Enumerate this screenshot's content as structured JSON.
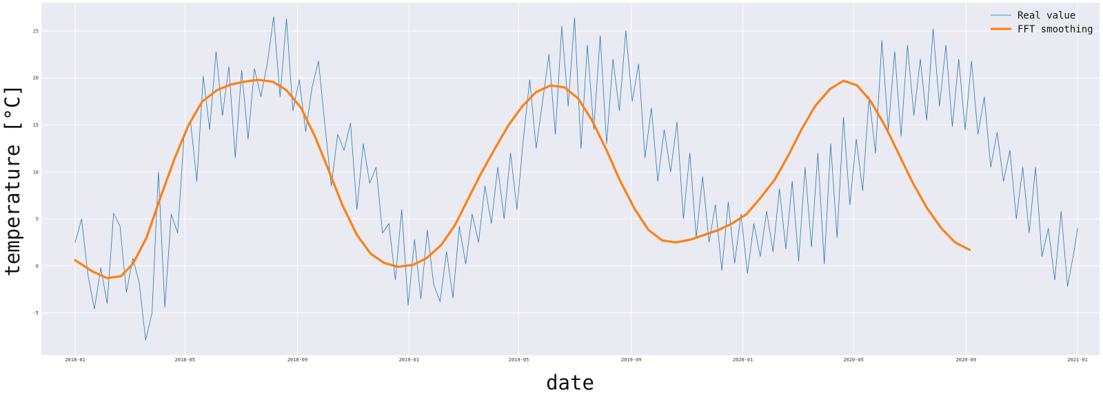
{
  "chart_data": {
    "type": "line",
    "title": "",
    "xlabel": "date",
    "ylabel": "temperature [°C]",
    "xlim": [
      "2017-11-25",
      "2021-01-25"
    ],
    "ylim": [
      -9.5,
      28.0
    ],
    "grid": true,
    "legend_position": "top-right",
    "x_ticks": [
      "2018-01",
      "2018-05",
      "2018-09",
      "2019-01",
      "2019-05",
      "2019-09",
      "2020-01",
      "2020-05",
      "2020-09",
      "2021-01"
    ],
    "y_ticks": [
      -5,
      0,
      5,
      10,
      15,
      20,
      25
    ],
    "colors": {
      "real": "#1f77b4",
      "smooth": "#ff7f0e",
      "plot_bg": "#eaeaf2",
      "grid": "#ffffff"
    },
    "series": [
      {
        "name": "Real value",
        "style": "thin",
        "points": [
          [
            "2018-01-01",
            2.5
          ],
          [
            "2018-01-08",
            5.0
          ],
          [
            "2018-01-15",
            -1.0
          ],
          [
            "2018-01-22",
            -4.6
          ],
          [
            "2018-01-29",
            -0.2
          ],
          [
            "2018-02-05",
            -4.0
          ],
          [
            "2018-02-12",
            5.6
          ],
          [
            "2018-02-19",
            4.2
          ],
          [
            "2018-02-26",
            -2.8
          ],
          [
            "2018-03-05",
            0.8
          ],
          [
            "2018-03-12",
            -1.8
          ],
          [
            "2018-03-19",
            -7.9
          ],
          [
            "2018-03-26",
            -5.0
          ],
          [
            "2018-04-02",
            10.0
          ],
          [
            "2018-04-09",
            -4.4
          ],
          [
            "2018-04-16",
            5.5
          ],
          [
            "2018-04-23",
            3.5
          ],
          [
            "2018-04-30",
            13.8
          ],
          [
            "2018-05-07",
            15.5
          ],
          [
            "2018-05-14",
            9.0
          ],
          [
            "2018-05-21",
            20.2
          ],
          [
            "2018-05-28",
            14.5
          ],
          [
            "2018-06-04",
            22.8
          ],
          [
            "2018-06-11",
            16.0
          ],
          [
            "2018-06-18",
            21.2
          ],
          [
            "2018-06-25",
            11.5
          ],
          [
            "2018-07-02",
            20.8
          ],
          [
            "2018-07-09",
            13.5
          ],
          [
            "2018-07-16",
            21.0
          ],
          [
            "2018-07-23",
            18.0
          ],
          [
            "2018-07-30",
            21.5
          ],
          [
            "2018-08-06",
            26.5
          ],
          [
            "2018-08-13",
            18.0
          ],
          [
            "2018-08-20",
            26.3
          ],
          [
            "2018-08-27",
            16.5
          ],
          [
            "2018-09-03",
            19.8
          ],
          [
            "2018-09-10",
            14.3
          ],
          [
            "2018-09-17",
            19.0
          ],
          [
            "2018-09-24",
            21.8
          ],
          [
            "2018-10-01",
            15.0
          ],
          [
            "2018-10-08",
            8.5
          ],
          [
            "2018-10-15",
            14.0
          ],
          [
            "2018-10-22",
            12.3
          ],
          [
            "2018-10-29",
            15.2
          ],
          [
            "2018-11-05",
            6.0
          ],
          [
            "2018-11-12",
            13.0
          ],
          [
            "2018-11-19",
            8.8
          ],
          [
            "2018-11-26",
            10.5
          ],
          [
            "2018-12-03",
            3.5
          ],
          [
            "2018-12-10",
            4.5
          ],
          [
            "2018-12-17",
            -1.5
          ],
          [
            "2018-12-24",
            6.0
          ],
          [
            "2018-12-31",
            -4.2
          ],
          [
            "2019-01-07",
            2.8
          ],
          [
            "2019-01-14",
            -3.5
          ],
          [
            "2019-01-21",
            3.8
          ],
          [
            "2019-01-28",
            -2.0
          ],
          [
            "2019-02-04",
            -3.8
          ],
          [
            "2019-02-11",
            1.5
          ],
          [
            "2019-02-18",
            -3.4
          ],
          [
            "2019-02-25",
            4.2
          ],
          [
            "2019-03-04",
            0.2
          ],
          [
            "2019-03-11",
            5.5
          ],
          [
            "2019-03-18",
            2.5
          ],
          [
            "2019-03-25",
            8.5
          ],
          [
            "2019-04-01",
            4.5
          ],
          [
            "2019-04-08",
            10.5
          ],
          [
            "2019-04-15",
            5.0
          ],
          [
            "2019-04-22",
            12.0
          ],
          [
            "2019-04-29",
            6.0
          ],
          [
            "2019-05-06",
            13.5
          ],
          [
            "2019-05-13",
            19.8
          ],
          [
            "2019-05-20",
            12.5
          ],
          [
            "2019-05-27",
            17.5
          ],
          [
            "2019-06-03",
            22.5
          ],
          [
            "2019-06-10",
            14.0
          ],
          [
            "2019-06-17",
            25.5
          ],
          [
            "2019-06-24",
            17.0
          ],
          [
            "2019-07-01",
            26.4
          ],
          [
            "2019-07-08",
            12.5
          ],
          [
            "2019-07-15",
            23.5
          ],
          [
            "2019-07-22",
            14.5
          ],
          [
            "2019-07-29",
            24.5
          ],
          [
            "2019-08-05",
            13.0
          ],
          [
            "2019-08-12",
            22.0
          ],
          [
            "2019-08-19",
            16.5
          ],
          [
            "2019-08-26",
            25.0
          ],
          [
            "2019-09-02",
            17.5
          ],
          [
            "2019-09-09",
            21.5
          ],
          [
            "2019-09-16",
            11.5
          ],
          [
            "2019-09-23",
            16.8
          ],
          [
            "2019-09-30",
            9.0
          ],
          [
            "2019-10-07",
            14.5
          ],
          [
            "2019-10-14",
            10.0
          ],
          [
            "2019-10-21",
            15.3
          ],
          [
            "2019-10-28",
            5.0
          ],
          [
            "2019-11-04",
            12.0
          ],
          [
            "2019-11-11",
            3.0
          ],
          [
            "2019-11-18",
            9.5
          ],
          [
            "2019-11-25",
            2.5
          ],
          [
            "2019-12-02",
            6.5
          ],
          [
            "2019-12-09",
            -0.5
          ],
          [
            "2019-12-16",
            6.8
          ],
          [
            "2019-12-23",
            0.3
          ],
          [
            "2019-12-30",
            5.5
          ],
          [
            "2020-01-06",
            -0.8
          ],
          [
            "2020-01-13",
            4.5
          ],
          [
            "2020-01-20",
            1.0
          ],
          [
            "2020-01-27",
            5.8
          ],
          [
            "2020-02-03",
            1.5
          ],
          [
            "2020-02-10",
            8.2
          ],
          [
            "2020-02-17",
            1.8
          ],
          [
            "2020-02-24",
            9.0
          ],
          [
            "2020-03-02",
            0.5
          ],
          [
            "2020-03-09",
            10.5
          ],
          [
            "2020-03-16",
            2.0
          ],
          [
            "2020-03-23",
            12.0
          ],
          [
            "2020-03-30",
            0.2
          ],
          [
            "2020-04-06",
            13.0
          ],
          [
            "2020-04-13",
            3.0
          ],
          [
            "2020-04-20",
            15.8
          ],
          [
            "2020-04-27",
            6.5
          ],
          [
            "2020-05-04",
            13.5
          ],
          [
            "2020-05-11",
            8.0
          ],
          [
            "2020-05-18",
            18.0
          ],
          [
            "2020-05-25",
            12.0
          ],
          [
            "2020-06-01",
            24.0
          ],
          [
            "2020-06-08",
            14.5
          ],
          [
            "2020-06-15",
            22.8
          ],
          [
            "2020-06-22",
            13.8
          ],
          [
            "2020-06-29",
            23.5
          ],
          [
            "2020-07-06",
            16.0
          ],
          [
            "2020-07-13",
            22.0
          ],
          [
            "2020-07-20",
            15.5
          ],
          [
            "2020-07-27",
            25.2
          ],
          [
            "2020-08-03",
            17.0
          ],
          [
            "2020-08-10",
            23.5
          ],
          [
            "2020-08-17",
            14.8
          ],
          [
            "2020-08-24",
            22.0
          ],
          [
            "2020-08-31",
            14.5
          ],
          [
            "2020-09-07",
            21.8
          ],
          [
            "2020-09-14",
            14.0
          ],
          [
            "2020-09-21",
            18.0
          ],
          [
            "2020-09-28",
            10.5
          ],
          [
            "2020-10-05",
            14.2
          ],
          [
            "2020-10-12",
            9.0
          ],
          [
            "2020-10-19",
            12.3
          ],
          [
            "2020-10-26",
            5.0
          ],
          [
            "2020-11-02",
            10.5
          ],
          [
            "2020-11-09",
            3.5
          ],
          [
            "2020-11-16",
            10.5
          ],
          [
            "2020-11-23",
            1.0
          ],
          [
            "2020-11-30",
            4.0
          ],
          [
            "2020-12-07",
            -1.5
          ],
          [
            "2020-12-14",
            5.8
          ],
          [
            "2020-12-21",
            -2.2
          ],
          [
            "2020-12-28",
            1.5
          ],
          [
            "2021-01-01",
            4.0
          ]
        ]
      },
      {
        "name": "FFT smoothing",
        "style": "thick",
        "points": [
          [
            "2018-01-01",
            0.6
          ],
          [
            "2018-01-20",
            -0.6
          ],
          [
            "2018-02-05",
            -1.3
          ],
          [
            "2018-02-20",
            -1.1
          ],
          [
            "2018-03-05",
            0.2
          ],
          [
            "2018-03-20",
            3.0
          ],
          [
            "2018-04-05",
            7.5
          ],
          [
            "2018-04-20",
            11.5
          ],
          [
            "2018-05-05",
            15.0
          ],
          [
            "2018-05-20",
            17.5
          ],
          [
            "2018-06-05",
            18.7
          ],
          [
            "2018-06-20",
            19.3
          ],
          [
            "2018-07-05",
            19.6
          ],
          [
            "2018-07-20",
            19.8
          ],
          [
            "2018-08-05",
            19.6
          ],
          [
            "2018-08-20",
            18.7
          ],
          [
            "2018-09-05",
            16.8
          ],
          [
            "2018-09-20",
            13.8
          ],
          [
            "2018-10-05",
            10.2
          ],
          [
            "2018-10-20",
            6.5
          ],
          [
            "2018-11-05",
            3.3
          ],
          [
            "2018-11-20",
            1.3
          ],
          [
            "2018-12-05",
            0.3
          ],
          [
            "2018-12-20",
            -0.1
          ],
          [
            "2019-01-05",
            0.1
          ],
          [
            "2019-01-20",
            0.8
          ],
          [
            "2019-02-05",
            2.2
          ],
          [
            "2019-02-20",
            4.3
          ],
          [
            "2019-03-05",
            6.8
          ],
          [
            "2019-03-20",
            9.7
          ],
          [
            "2019-04-05",
            12.5
          ],
          [
            "2019-04-20",
            15.0
          ],
          [
            "2019-05-05",
            17.0
          ],
          [
            "2019-05-20",
            18.5
          ],
          [
            "2019-06-05",
            19.2
          ],
          [
            "2019-06-20",
            19.0
          ],
          [
            "2019-07-05",
            17.8
          ],
          [
            "2019-07-20",
            15.5
          ],
          [
            "2019-08-05",
            12.3
          ],
          [
            "2019-08-20",
            9.0
          ],
          [
            "2019-09-05",
            6.0
          ],
          [
            "2019-09-20",
            3.8
          ],
          [
            "2019-10-05",
            2.7
          ],
          [
            "2019-10-20",
            2.5
          ],
          [
            "2019-11-05",
            2.8
          ],
          [
            "2019-11-20",
            3.3
          ],
          [
            "2019-12-05",
            3.8
          ],
          [
            "2019-12-20",
            4.5
          ],
          [
            "2020-01-05",
            5.5
          ],
          [
            "2020-01-20",
            7.2
          ],
          [
            "2020-02-05",
            9.2
          ],
          [
            "2020-02-20",
            11.8
          ],
          [
            "2020-03-05",
            14.5
          ],
          [
            "2020-03-20",
            17.0
          ],
          [
            "2020-04-05",
            18.8
          ],
          [
            "2020-04-20",
            19.7
          ],
          [
            "2020-05-05",
            19.2
          ],
          [
            "2020-05-20",
            17.5
          ],
          [
            "2020-06-05",
            14.8
          ],
          [
            "2020-06-20",
            11.8
          ],
          [
            "2020-07-05",
            8.8
          ],
          [
            "2020-07-20",
            6.2
          ],
          [
            "2020-08-05",
            4.0
          ],
          [
            "2020-08-20",
            2.5
          ],
          [
            "2020-09-05",
            1.7
          ]
        ]
      }
    ]
  }
}
